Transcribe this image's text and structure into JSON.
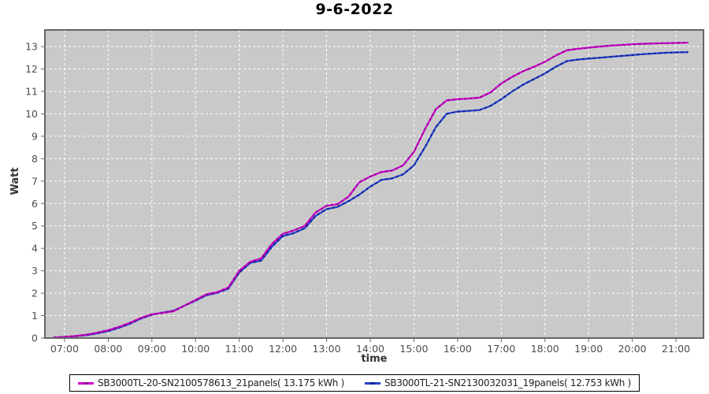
{
  "chart_data": {
    "type": "line",
    "title": "9-6-2022",
    "xlabel": "time",
    "ylabel": "Watt",
    "legend_position": "bottom",
    "grid": true,
    "x_tick_labels": [
      "07:00",
      "08:00",
      "09:00",
      "10:00",
      "11:00",
      "12:00",
      "13:00",
      "14:00",
      "15:00",
      "16:00",
      "17:00",
      "18:00",
      "19:00",
      "20:00",
      "21:00"
    ],
    "x_tick_hours": [
      7,
      8,
      9,
      10,
      11,
      12,
      13,
      14,
      15,
      16,
      17,
      18,
      19,
      20,
      21
    ],
    "y_ticks": [
      0,
      1,
      2,
      3,
      4,
      5,
      6,
      7,
      8,
      9,
      10,
      11,
      12,
      13
    ],
    "x_range_hours": [
      6.55,
      21.63
    ],
    "y_range": [
      0,
      13.74
    ],
    "x_hours": [
      6.75,
      7.0,
      7.25,
      7.5,
      7.75,
      8.0,
      8.25,
      8.5,
      8.75,
      9.0,
      9.25,
      9.5,
      9.75,
      10.0,
      10.25,
      10.5,
      10.75,
      11.0,
      11.25,
      11.5,
      11.75,
      12.0,
      12.25,
      12.5,
      12.75,
      13.0,
      13.25,
      13.5,
      13.75,
      14.0,
      14.25,
      14.5,
      14.75,
      15.0,
      15.25,
      15.5,
      15.75,
      16.0,
      16.25,
      16.5,
      16.75,
      17.0,
      17.25,
      17.5,
      17.75,
      18.0,
      18.25,
      18.5,
      18.75,
      19.0,
      19.25,
      19.5,
      19.75,
      20.0,
      20.25,
      20.5,
      20.75,
      21.0,
      21.27
    ],
    "series": [
      {
        "name": "SB3000TL-20-SN2100578613_21panels( 13.175 kWh )",
        "total_kwh": 13.175,
        "color": "#CC00CC",
        "marker_color": "#990099",
        "values": [
          0.02,
          0.05,
          0.09,
          0.15,
          0.24,
          0.35,
          0.5,
          0.68,
          0.9,
          1.06,
          1.12,
          1.2,
          1.45,
          1.7,
          1.95,
          2.05,
          2.25,
          3.0,
          3.4,
          3.55,
          4.2,
          4.65,
          4.8,
          5.0,
          5.6,
          5.9,
          5.97,
          6.3,
          6.95,
          7.2,
          7.4,
          7.47,
          7.7,
          8.3,
          9.3,
          10.2,
          10.6,
          10.65,
          10.68,
          10.72,
          10.95,
          11.35,
          11.65,
          11.9,
          12.1,
          12.32,
          12.6,
          12.83,
          12.9,
          12.95,
          13.0,
          13.04,
          13.07,
          13.1,
          13.12,
          13.14,
          13.15,
          13.16,
          13.17
        ]
      },
      {
        "name": "SB3000TL-21-SN2130032031_19panels( 12.753 kWh )",
        "total_kwh": 12.753,
        "color": "#2244CC",
        "marker_color": "#112299",
        "values": [
          0.02,
          0.05,
          0.08,
          0.13,
          0.21,
          0.31,
          0.46,
          0.64,
          0.87,
          1.04,
          1.14,
          1.22,
          1.45,
          1.67,
          1.91,
          2.02,
          2.2,
          2.92,
          3.35,
          3.45,
          4.08,
          4.55,
          4.68,
          4.9,
          5.45,
          5.75,
          5.85,
          6.1,
          6.4,
          6.75,
          7.05,
          7.12,
          7.3,
          7.7,
          8.5,
          9.4,
          10.0,
          10.1,
          10.13,
          10.17,
          10.35,
          10.65,
          11.0,
          11.3,
          11.55,
          11.8,
          12.1,
          12.35,
          12.42,
          12.46,
          12.5,
          12.54,
          12.58,
          12.62,
          12.66,
          12.69,
          12.72,
          12.74,
          12.75
        ]
      }
    ],
    "style": {
      "plot_bg": "#C9C9C9",
      "grid_color": "#FFFFFF",
      "border_color": "#666666",
      "tick_color": "#666666",
      "tick_label_color": "#4D4D4D"
    }
  }
}
